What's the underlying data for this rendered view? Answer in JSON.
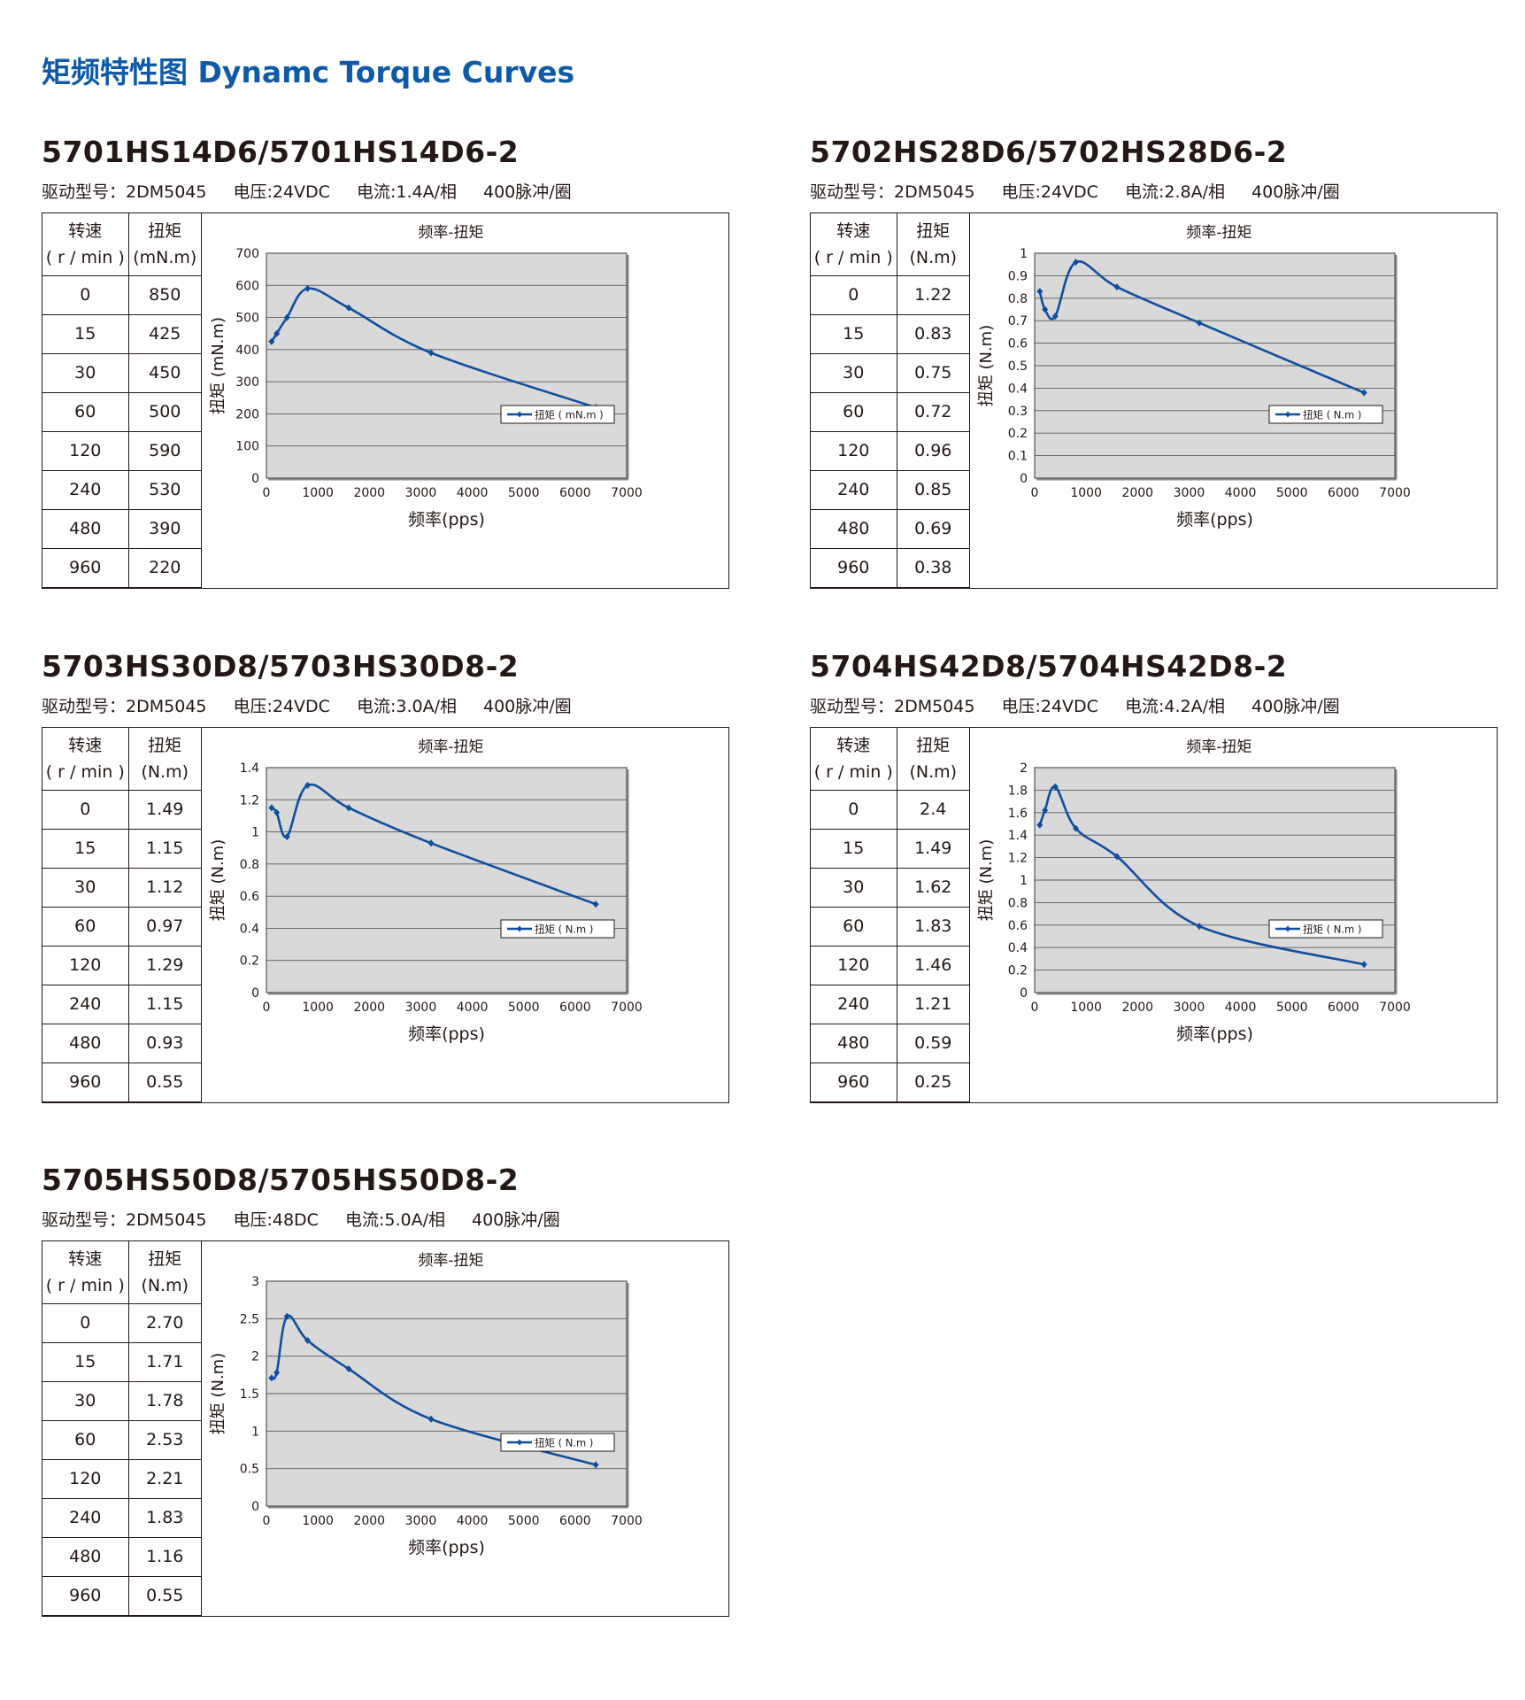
{
  "page_title": "矩频特性图 Dynamc Torque Curves",
  "table_headers": {
    "speed": "转速",
    "speed_unit": "( r / min )",
    "torque": "扭矩"
  },
  "chart_common": {
    "title": "频率-扭矩",
    "xlabel": "频率(pps)"
  },
  "colors": {
    "line": "#0f4fa0",
    "plot_bg": "#d9d9d9",
    "title": "#0f5aa8"
  },
  "panels": [
    {
      "model": "5701HS14D6/5701HS14D6-2",
      "spec": {
        "driver": "驱动型号：2DM5045",
        "voltage": "电压:24VDC",
        "current": "电流:1.4A/相",
        "pulses": "400脉冲/圈"
      },
      "torque_unit": "(mN.m)",
      "rows": [
        [
          "0",
          "850"
        ],
        [
          "15",
          "425"
        ],
        [
          "30",
          "450"
        ],
        [
          "60",
          "500"
        ],
        [
          "120",
          "590"
        ],
        [
          "240",
          "530"
        ],
        [
          "480",
          "390"
        ],
        [
          "960",
          "220"
        ]
      ]
    },
    {
      "model": "5702HS28D6/5702HS28D6-2",
      "spec": {
        "driver": "驱动型号：2DM5045",
        "voltage": "电压:24VDC",
        "current": "电流:2.8A/相",
        "pulses": "400脉冲/圈"
      },
      "torque_unit": "(N.m)",
      "rows": [
        [
          "0",
          "1.22"
        ],
        [
          "15",
          "0.83"
        ],
        [
          "30",
          "0.75"
        ],
        [
          "60",
          "0.72"
        ],
        [
          "120",
          "0.96"
        ],
        [
          "240",
          "0.85"
        ],
        [
          "480",
          "0.69"
        ],
        [
          "960",
          "0.38"
        ]
      ]
    },
    {
      "model": "5703HS30D8/5703HS30D8-2",
      "spec": {
        "driver": "驱动型号：2DM5045",
        "voltage": "电压:24VDC",
        "current": "电流:3.0A/相",
        "pulses": "400脉冲/圈"
      },
      "torque_unit": "(N.m)",
      "rows": [
        [
          "0",
          "1.49"
        ],
        [
          "15",
          "1.15"
        ],
        [
          "30",
          "1.12"
        ],
        [
          "60",
          "0.97"
        ],
        [
          "120",
          "1.29"
        ],
        [
          "240",
          "1.15"
        ],
        [
          "480",
          "0.93"
        ],
        [
          "960",
          "0.55"
        ]
      ]
    },
    {
      "model": "5704HS42D8/5704HS42D8-2",
      "spec": {
        "driver": "驱动型号：2DM5045",
        "voltage": "电压:24VDC",
        "current": "电流:4.2A/相",
        "pulses": "400脉冲/圈"
      },
      "torque_unit": "(N.m)",
      "rows": [
        [
          "0",
          "2.4"
        ],
        [
          "15",
          "1.49"
        ],
        [
          "30",
          "1.62"
        ],
        [
          "60",
          "1.83"
        ],
        [
          "120",
          "1.46"
        ],
        [
          "240",
          "1.21"
        ],
        [
          "480",
          "0.59"
        ],
        [
          "960",
          "0.25"
        ]
      ]
    },
    {
      "model": "5705HS50D8/5705HS50D8-2",
      "spec": {
        "driver": "驱动型号：2DM5045",
        "voltage": "电压:48DC",
        "current": "电流:5.0A/相",
        "pulses": "400脉冲/圈"
      },
      "torque_unit": "(N.m)",
      "rows": [
        [
          "0",
          "2.70"
        ],
        [
          "15",
          "1.71"
        ],
        [
          "30",
          "1.78"
        ],
        [
          "60",
          "2.53"
        ],
        [
          "120",
          "2.21"
        ],
        [
          "240",
          "1.83"
        ],
        [
          "480",
          "1.16"
        ],
        [
          "960",
          "0.55"
        ]
      ]
    }
  ],
  "chart_data": [
    {
      "type": "line",
      "title": "频率-扭矩",
      "xlabel": "频率(pps)",
      "ylabel": "扭矩 (mN.m)",
      "xlim": [
        0,
        7000
      ],
      "ylim": [
        0,
        700
      ],
      "xticks": [
        "0",
        "1000",
        "2000",
        "3000",
        "4000",
        "5000",
        "6000",
        "7000"
      ],
      "yticks": [
        "0",
        "100",
        "200",
        "300",
        "400",
        "500",
        "600",
        "700"
      ],
      "series": [
        {
          "name": "扭矩 ( mN.m )",
          "x": [
            100,
            200,
            400,
            800,
            1600,
            3200,
            6400
          ],
          "y": [
            425,
            450,
            500,
            590,
            530,
            390,
            220
          ]
        }
      ],
      "legend": "right"
    },
    {
      "type": "line",
      "title": "频率-扭矩",
      "xlabel": "频率(pps)",
      "ylabel": "扭矩 (N.m)",
      "xlim": [
        0,
        7000
      ],
      "ylim": [
        0,
        1
      ],
      "xticks": [
        "0",
        "1000",
        "2000",
        "3000",
        "4000",
        "5000",
        "6000",
        "7000"
      ],
      "yticks": [
        "0",
        "0.1",
        "0.2",
        "0.3",
        "0.4",
        "0.5",
        "0.6",
        "0.7",
        "0.8",
        "0.9",
        "1"
      ],
      "series": [
        {
          "name": "扭矩 ( N.m )",
          "x": [
            100,
            200,
            400,
            800,
            1600,
            3200,
            6400
          ],
          "y": [
            0.83,
            0.75,
            0.72,
            0.96,
            0.85,
            0.69,
            0.38
          ]
        }
      ],
      "legend": "right"
    },
    {
      "type": "line",
      "title": "频率-扭矩",
      "xlabel": "频率(pps)",
      "ylabel": "扭矩 (N.m)",
      "xlim": [
        0,
        7000
      ],
      "ylim": [
        0,
        1.4
      ],
      "xticks": [
        "0",
        "1000",
        "2000",
        "3000",
        "4000",
        "5000",
        "6000",
        "7000"
      ],
      "yticks": [
        "0",
        "0.2",
        "0.4",
        "0.6",
        "0.8",
        "1",
        "1.2",
        "1.4"
      ],
      "series": [
        {
          "name": "扭矩 ( N.m )",
          "x": [
            100,
            200,
            400,
            800,
            1600,
            3200,
            6400
          ],
          "y": [
            1.15,
            1.12,
            0.97,
            1.29,
            1.15,
            0.93,
            0.55
          ]
        }
      ],
      "legend": "right"
    },
    {
      "type": "line",
      "title": "频率-扭矩",
      "xlabel": "频率(pps)",
      "ylabel": "扭矩 (N.m)",
      "xlim": [
        0,
        7000
      ],
      "ylim": [
        0,
        2
      ],
      "xticks": [
        "0",
        "1000",
        "2000",
        "3000",
        "4000",
        "5000",
        "6000",
        "7000"
      ],
      "yticks": [
        "0",
        "0.2",
        "0.4",
        "0.6",
        "0.8",
        "1",
        "1.2",
        "1.4",
        "1.6",
        "1.8",
        "2"
      ],
      "series": [
        {
          "name": "扭矩 ( N.m )",
          "x": [
            100,
            200,
            400,
            800,
            1600,
            3200,
            6400
          ],
          "y": [
            1.49,
            1.62,
            1.83,
            1.46,
            1.21,
            0.59,
            0.25
          ]
        }
      ],
      "legend": "right"
    },
    {
      "type": "line",
      "title": "频率-扭矩",
      "xlabel": "频率(pps)",
      "ylabel": "扭矩 (N.m)",
      "xlim": [
        0,
        7000
      ],
      "ylim": [
        0,
        3
      ],
      "xticks": [
        "0",
        "1000",
        "2000",
        "3000",
        "4000",
        "5000",
        "6000",
        "7000"
      ],
      "yticks": [
        "0",
        "0.5",
        "1",
        "1.5",
        "2",
        "2.5",
        "3"
      ],
      "series": [
        {
          "name": "扭矩 ( N.m )",
          "x": [
            100,
            200,
            400,
            800,
            1600,
            3200,
            6400
          ],
          "y": [
            1.71,
            1.78,
            2.53,
            2.21,
            1.83,
            1.16,
            0.55
          ]
        }
      ],
      "legend": "right"
    }
  ]
}
